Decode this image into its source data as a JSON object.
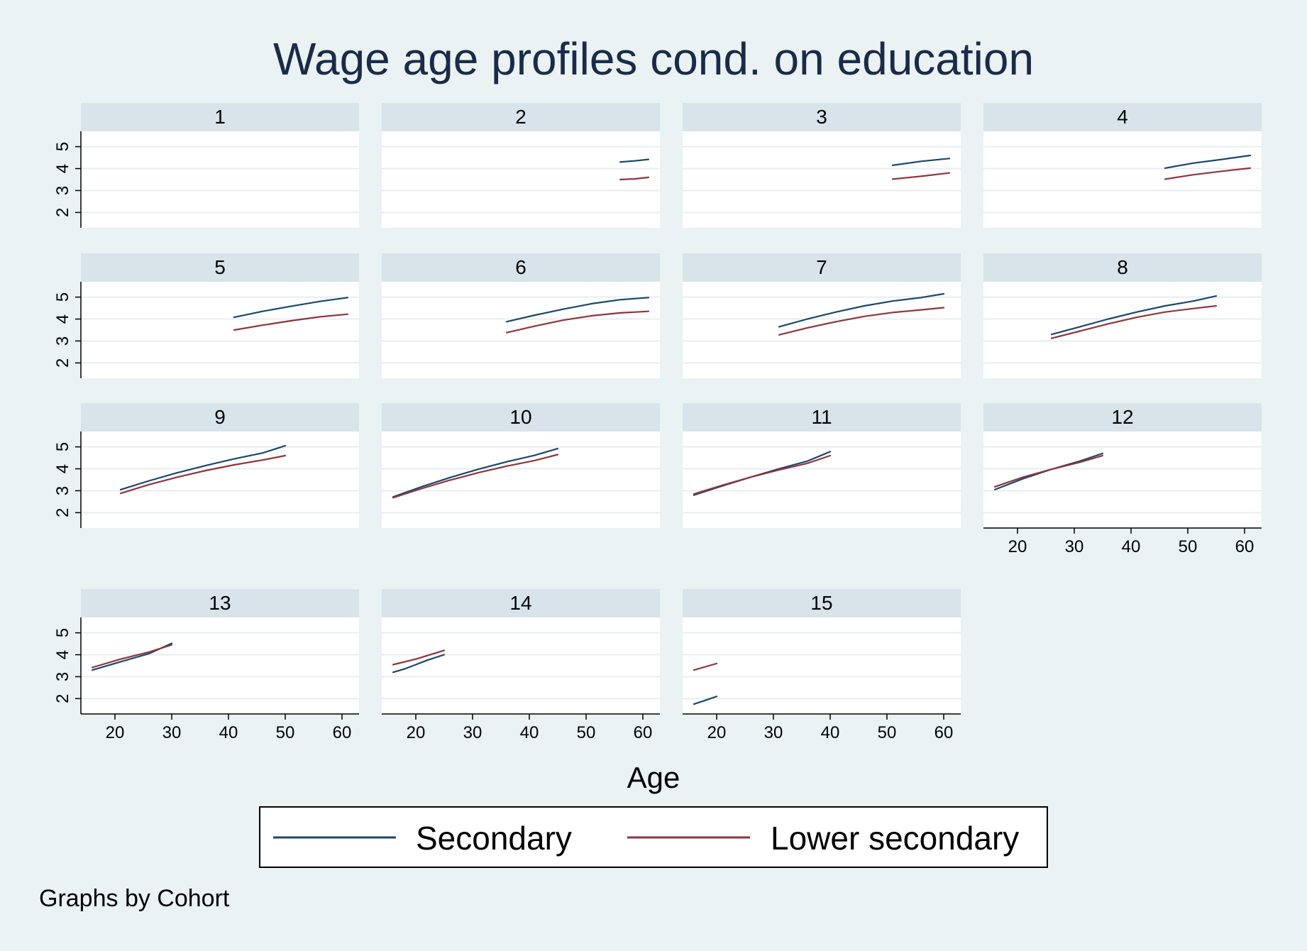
{
  "chart_data": {
    "type": "line",
    "title": "Wage age profiles cond. on education",
    "xlabel": "Age",
    "ylabel": "",
    "note": "Graphs by Cohort",
    "xlim": [
      14,
      63
    ],
    "ylim": [
      1.3,
      5.7
    ],
    "xticks": [
      20,
      30,
      40,
      50,
      60
    ],
    "yticks": [
      2,
      3,
      4,
      5
    ],
    "grid": true,
    "legend": {
      "position": "bottom",
      "entries": [
        {
          "name": "Secondary",
          "color": "#1a476f"
        },
        {
          "name": "Lower secondary",
          "color": "#90353b"
        }
      ]
    },
    "panels": [
      {
        "label": "1",
        "series": []
      },
      {
        "label": "2",
        "series": [
          {
            "name": "Secondary",
            "x": [
              56,
              58.5,
              61
            ],
            "y": [
              4.3,
              4.35,
              4.42
            ]
          },
          {
            "name": "Lower secondary",
            "x": [
              56,
              58.5,
              61
            ],
            "y": [
              3.5,
              3.53,
              3.6
            ]
          }
        ]
      },
      {
        "label": "3",
        "series": [
          {
            "name": "Secondary",
            "x": [
              51,
              56,
              61
            ],
            "y": [
              4.15,
              4.33,
              4.46
            ]
          },
          {
            "name": "Lower secondary",
            "x": [
              51,
              56,
              61
            ],
            "y": [
              3.52,
              3.65,
              3.8
            ]
          }
        ]
      },
      {
        "label": "4",
        "series": [
          {
            "name": "Secondary",
            "x": [
              46,
              51,
              56,
              61
            ],
            "y": [
              4.02,
              4.25,
              4.42,
              4.6
            ]
          },
          {
            "name": "Lower secondary",
            "x": [
              46,
              51,
              56,
              61
            ],
            "y": [
              3.52,
              3.72,
              3.88,
              4.02
            ]
          }
        ]
      },
      {
        "label": "5",
        "series": [
          {
            "name": "Secondary",
            "x": [
              41,
              46,
              51,
              56,
              61
            ],
            "y": [
              4.08,
              4.35,
              4.58,
              4.8,
              4.98
            ]
          },
          {
            "name": "Lower secondary",
            "x": [
              41,
              46,
              51,
              56,
              61
            ],
            "y": [
              3.5,
              3.72,
              3.92,
              4.1,
              4.22
            ]
          }
        ]
      },
      {
        "label": "6",
        "series": [
          {
            "name": "Secondary",
            "x": [
              36,
              41,
              46,
              51,
              56,
              61
            ],
            "y": [
              3.88,
              4.18,
              4.45,
              4.7,
              4.88,
              4.98
            ]
          },
          {
            "name": "Lower secondary",
            "x": [
              36,
              41,
              46,
              51,
              56,
              61
            ],
            "y": [
              3.38,
              3.68,
              3.95,
              4.15,
              4.28,
              4.35
            ]
          }
        ]
      },
      {
        "label": "7",
        "series": [
          {
            "name": "Secondary",
            "x": [
              31,
              36,
              41,
              46,
              51,
              56,
              60
            ],
            "y": [
              3.65,
              4.0,
              4.32,
              4.6,
              4.82,
              4.98,
              5.15
            ]
          },
          {
            "name": "Lower secondary",
            "x": [
              31,
              36,
              41,
              46,
              51,
              56,
              60
            ],
            "y": [
              3.28,
              3.6,
              3.88,
              4.12,
              4.3,
              4.42,
              4.52
            ]
          }
        ]
      },
      {
        "label": "8",
        "series": [
          {
            "name": "Secondary",
            "x": [
              26,
              31,
              36,
              41,
              46,
              51,
              55
            ],
            "y": [
              3.3,
              3.65,
              4.0,
              4.32,
              4.6,
              4.82,
              5.05
            ]
          },
          {
            "name": "Lower secondary",
            "x": [
              26,
              31,
              36,
              41,
              46,
              51,
              55
            ],
            "y": [
              3.12,
              3.45,
              3.78,
              4.08,
              4.32,
              4.48,
              4.6
            ]
          }
        ]
      },
      {
        "label": "9",
        "series": [
          {
            "name": "Secondary",
            "x": [
              21,
              26,
              31,
              36,
              41,
              46,
              50
            ],
            "y": [
              3.05,
              3.45,
              3.82,
              4.15,
              4.45,
              4.72,
              5.05
            ]
          },
          {
            "name": "Lower secondary",
            "x": [
              21,
              26,
              31,
              36,
              41,
              46,
              50
            ],
            "y": [
              2.88,
              3.28,
              3.62,
              3.92,
              4.18,
              4.4,
              4.6
            ]
          }
        ]
      },
      {
        "label": "10",
        "series": [
          {
            "name": "Secondary",
            "x": [
              16,
              21,
              26,
              31,
              36,
              41,
              45
            ],
            "y": [
              2.72,
              3.18,
              3.6,
              3.98,
              4.32,
              4.62,
              4.92
            ]
          },
          {
            "name": "Lower secondary",
            "x": [
              16,
              21,
              26,
              31,
              36,
              41,
              45
            ],
            "y": [
              2.68,
              3.1,
              3.48,
              3.82,
              4.12,
              4.38,
              4.65
            ]
          }
        ]
      },
      {
        "label": "11",
        "series": [
          {
            "name": "Secondary",
            "x": [
              16,
              21,
              26,
              31,
              36,
              40
            ],
            "y": [
              2.8,
              3.22,
              3.62,
              4.0,
              4.35,
              4.78
            ]
          },
          {
            "name": "Lower secondary",
            "x": [
              16,
              21,
              26,
              31,
              36,
              40
            ],
            "y": [
              2.85,
              3.25,
              3.62,
              3.95,
              4.25,
              4.6
            ]
          }
        ]
      },
      {
        "label": "12",
        "series": [
          {
            "name": "Secondary",
            "x": [
              16,
              21,
              26,
              31,
              35
            ],
            "y": [
              3.05,
              3.55,
              3.98,
              4.35,
              4.7
            ]
          },
          {
            "name": "Lower secondary",
            "x": [
              16,
              21,
              26,
              31,
              35
            ],
            "y": [
              3.18,
              3.62,
              3.98,
              4.3,
              4.6
            ]
          }
        ]
      },
      {
        "label": "13",
        "series": [
          {
            "name": "Secondary",
            "x": [
              16,
              21,
              26,
              30
            ],
            "y": [
              3.3,
              3.68,
              4.05,
              4.52
            ]
          },
          {
            "name": "Lower secondary",
            "x": [
              16,
              21,
              26,
              30
            ],
            "y": [
              3.42,
              3.8,
              4.12,
              4.45
            ]
          }
        ]
      },
      {
        "label": "14",
        "series": [
          {
            "name": "Secondary",
            "x": [
              16,
              18,
              20,
              22,
              25
            ],
            "y": [
              3.2,
              3.35,
              3.55,
              3.75,
              4.0
            ]
          },
          {
            "name": "Lower secondary",
            "x": [
              16,
              20,
              25
            ],
            "y": [
              3.55,
              3.8,
              4.2
            ]
          }
        ]
      },
      {
        "label": "15",
        "series": [
          {
            "name": "Secondary",
            "x": [
              16,
              18,
              20
            ],
            "y": [
              1.75,
              1.92,
              2.1
            ]
          },
          {
            "name": "Lower secondary",
            "x": [
              16,
              18,
              20
            ],
            "y": [
              3.3,
              3.45,
              3.6
            ]
          }
        ]
      }
    ]
  }
}
